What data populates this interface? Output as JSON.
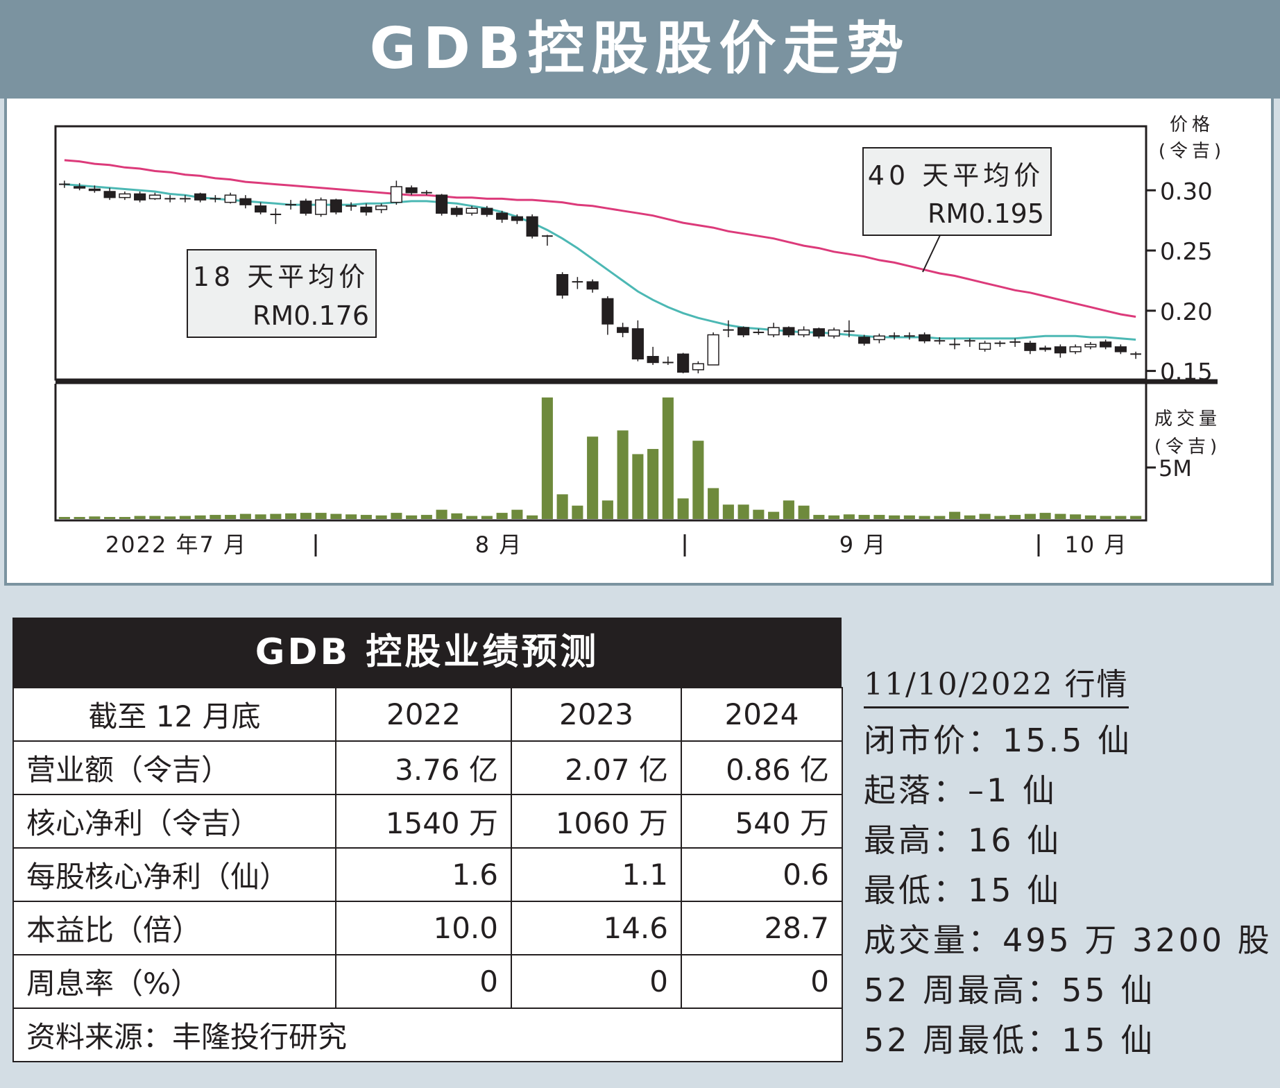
{
  "header": {
    "title": "GDB控股股价走势"
  },
  "chart_data": {
    "type": "candlestick",
    "price_axis": {
      "title": "价格",
      "unit": "(令吉)",
      "ticks": [
        "0.30",
        "0.25",
        "0.20",
        "0.15"
      ],
      "tick_values": [
        0.3,
        0.25,
        0.2,
        0.15
      ],
      "range": [
        0.144,
        0.352
      ]
    },
    "volume_axis": {
      "title": "成交量",
      "unit": "(令吉)",
      "ticks": [
        "5M"
      ],
      "tick_values": [
        5000000
      ],
      "range": [
        0,
        13000000
      ]
    },
    "x_labels": [
      "2022 年7 月",
      "8 月",
      "9 月",
      "10 月"
    ],
    "annotations": [
      {
        "label": "18 天平均价",
        "value": "RM0.176"
      },
      {
        "label": "40 天平均价",
        "value": "RM0.195"
      }
    ],
    "colors": {
      "ma18": "#4cb8b4",
      "ma40": "#dc3a7a",
      "volume": "#6e8a3c",
      "candle": "#231f20"
    },
    "candles": [
      [
        0.305,
        0.305,
        0.308,
        0.302
      ],
      [
        0.303,
        0.302,
        0.306,
        0.3
      ],
      [
        0.301,
        0.3,
        0.304,
        0.298
      ],
      [
        0.299,
        0.294,
        0.302,
        0.292
      ],
      [
        0.294,
        0.297,
        0.299,
        0.292
      ],
      [
        0.297,
        0.292,
        0.299,
        0.29
      ],
      [
        0.293,
        0.296,
        0.298,
        0.292
      ],
      [
        0.293,
        0.293,
        0.296,
        0.29
      ],
      [
        0.293,
        0.293,
        0.296,
        0.29
      ],
      [
        0.297,
        0.292,
        0.298,
        0.29
      ],
      [
        0.293,
        0.293,
        0.296,
        0.29
      ],
      [
        0.29,
        0.296,
        0.298,
        0.289
      ],
      [
        0.293,
        0.288,
        0.296,
        0.285
      ],
      [
        0.287,
        0.282,
        0.29,
        0.28
      ],
      [
        0.28,
        0.28,
        0.285,
        0.272
      ],
      [
        0.288,
        0.288,
        0.292,
        0.284
      ],
      [
        0.291,
        0.281,
        0.293,
        0.279
      ],
      [
        0.28,
        0.292,
        0.294,
        0.278
      ],
      [
        0.292,
        0.282,
        0.293,
        0.28
      ],
      [
        0.287,
        0.287,
        0.29,
        0.283
      ],
      [
        0.286,
        0.282,
        0.289,
        0.279
      ],
      [
        0.284,
        0.287,
        0.289,
        0.281
      ],
      [
        0.29,
        0.303,
        0.308,
        0.288
      ],
      [
        0.302,
        0.298,
        0.304,
        0.296
      ],
      [
        0.298,
        0.298,
        0.3,
        0.296
      ],
      [
        0.296,
        0.281,
        0.297,
        0.279
      ],
      [
        0.285,
        0.28,
        0.287,
        0.278
      ],
      [
        0.281,
        0.285,
        0.287,
        0.279
      ],
      [
        0.285,
        0.28,
        0.287,
        0.278
      ],
      [
        0.281,
        0.276,
        0.283,
        0.273
      ],
      [
        0.278,
        0.275,
        0.28,
        0.272
      ],
      [
        0.278,
        0.262,
        0.28,
        0.26
      ],
      [
        0.262,
        0.262,
        0.263,
        0.254
      ],
      [
        0.23,
        0.213,
        0.232,
        0.21
      ],
      [
        0.224,
        0.224,
        0.228,
        0.218
      ],
      [
        0.224,
        0.218,
        0.226,
        0.215
      ],
      [
        0.21,
        0.189,
        0.212,
        0.18
      ],
      [
        0.186,
        0.182,
        0.19,
        0.178
      ],
      [
        0.185,
        0.16,
        0.192,
        0.158
      ],
      [
        0.162,
        0.157,
        0.17,
        0.155
      ],
      [
        0.157,
        0.157,
        0.162,
        0.155
      ],
      [
        0.164,
        0.149,
        0.165,
        0.148
      ],
      [
        0.151,
        0.156,
        0.158,
        0.148
      ],
      [
        0.155,
        0.18,
        0.182,
        0.155
      ],
      [
        0.184,
        0.184,
        0.192,
        0.178
      ],
      [
        0.186,
        0.18,
        0.187,
        0.178
      ],
      [
        0.182,
        0.182,
        0.185,
        0.18
      ],
      [
        0.18,
        0.186,
        0.19,
        0.178
      ],
      [
        0.186,
        0.18,
        0.187,
        0.178
      ],
      [
        0.18,
        0.184,
        0.187,
        0.178
      ],
      [
        0.185,
        0.179,
        0.186,
        0.177
      ],
      [
        0.179,
        0.184,
        0.186,
        0.177
      ],
      [
        0.183,
        0.183,
        0.192,
        0.178
      ],
      [
        0.178,
        0.173,
        0.18,
        0.171
      ],
      [
        0.176,
        0.179,
        0.181,
        0.173
      ],
      [
        0.179,
        0.179,
        0.182,
        0.176
      ],
      [
        0.179,
        0.179,
        0.182,
        0.176
      ],
      [
        0.18,
        0.175,
        0.182,
        0.173
      ],
      [
        0.175,
        0.175,
        0.178,
        0.172
      ],
      [
        0.172,
        0.172,
        0.177,
        0.168
      ],
      [
        0.175,
        0.175,
        0.177,
        0.17
      ],
      [
        0.168,
        0.173,
        0.175,
        0.166
      ],
      [
        0.173,
        0.173,
        0.175,
        0.17
      ],
      [
        0.174,
        0.174,
        0.177,
        0.17
      ],
      [
        0.173,
        0.167,
        0.175,
        0.164
      ],
      [
        0.169,
        0.168,
        0.171,
        0.166
      ],
      [
        0.17,
        0.165,
        0.172,
        0.161
      ],
      [
        0.166,
        0.17,
        0.172,
        0.164
      ],
      [
        0.17,
        0.172,
        0.174,
        0.168
      ],
      [
        0.174,
        0.17,
        0.176,
        0.168
      ],
      [
        0.17,
        0.166,
        0.172,
        0.164
      ],
      [
        0.164,
        0.164,
        0.166,
        0.16
      ]
    ],
    "volume": [
      0.2,
      0.2,
      0.25,
      0.2,
      0.2,
      0.3,
      0.3,
      0.25,
      0.3,
      0.35,
      0.4,
      0.4,
      0.5,
      0.45,
      0.5,
      0.55,
      0.6,
      0.6,
      0.5,
      0.45,
      0.4,
      0.35,
      0.6,
      0.35,
      0.4,
      0.9,
      0.55,
      0.3,
      0.3,
      0.6,
      0.9,
      0.35,
      11.8,
      2.4,
      1.3,
      8.0,
      1.8,
      8.6,
      6.3,
      6.8,
      11.8,
      2.0,
      7.6,
      3.0,
      1.4,
      1.4,
      0.9,
      0.7,
      1.8,
      1.3,
      0.4,
      0.35,
      0.45,
      0.4,
      0.4,
      0.35,
      0.35,
      0.3,
      0.3,
      0.7,
      0.35,
      0.5,
      0.3,
      0.4,
      0.5,
      0.6,
      0.5,
      0.45,
      0.35,
      0.3,
      0.3,
      0.3
    ],
    "ma18": [
      0.305,
      0.304,
      0.303,
      0.302,
      0.301,
      0.3,
      0.299,
      0.297,
      0.296,
      0.294,
      0.293,
      0.292,
      0.291,
      0.29,
      0.289,
      0.288,
      0.288,
      0.288,
      0.288,
      0.288,
      0.289,
      0.289,
      0.29,
      0.291,
      0.291,
      0.29,
      0.289,
      0.287,
      0.285,
      0.282,
      0.278,
      0.273,
      0.267,
      0.26,
      0.252,
      0.243,
      0.234,
      0.225,
      0.216,
      0.209,
      0.203,
      0.198,
      0.194,
      0.191,
      0.188,
      0.186,
      0.185,
      0.184,
      0.183,
      0.182,
      0.182,
      0.181,
      0.18,
      0.179,
      0.178,
      0.178,
      0.178,
      0.178,
      0.177,
      0.177,
      0.177,
      0.177,
      0.177,
      0.177,
      0.178,
      0.179,
      0.179,
      0.179,
      0.178,
      0.178,
      0.177,
      0.176
    ],
    "ma40": [
      0.325,
      0.324,
      0.322,
      0.321,
      0.319,
      0.318,
      0.316,
      0.315,
      0.313,
      0.312,
      0.31,
      0.309,
      0.307,
      0.306,
      0.305,
      0.304,
      0.303,
      0.302,
      0.301,
      0.3,
      0.299,
      0.298,
      0.297,
      0.296,
      0.296,
      0.295,
      0.294,
      0.294,
      0.293,
      0.293,
      0.292,
      0.292,
      0.291,
      0.29,
      0.288,
      0.287,
      0.285,
      0.283,
      0.281,
      0.279,
      0.276,
      0.273,
      0.271,
      0.269,
      0.266,
      0.264,
      0.262,
      0.26,
      0.257,
      0.254,
      0.252,
      0.249,
      0.247,
      0.245,
      0.242,
      0.24,
      0.237,
      0.234,
      0.231,
      0.229,
      0.226,
      0.223,
      0.22,
      0.217,
      0.215,
      0.212,
      0.209,
      0.206,
      0.203,
      0.2,
      0.197,
      0.195
    ]
  },
  "forecast": {
    "title": "GDB 控股业绩预测",
    "columns": [
      "截至 12 月底",
      "2022",
      "2023",
      "2024"
    ],
    "rows": [
      [
        "营业额（令吉）",
        "3.76 亿",
        "2.07 亿",
        "0.86 亿"
      ],
      [
        "核心净利（令吉）",
        "1540 万",
        "1060 万",
        "540 万"
      ],
      [
        "每股核心净利（仙）",
        "1.6",
        "1.1",
        "0.6"
      ],
      [
        "本益比（倍）",
        "10.0",
        "14.6",
        "28.7"
      ],
      [
        "周息率（%）",
        "0",
        "0",
        "0"
      ]
    ],
    "source": "资料来源：丰隆投行研究"
  },
  "market": {
    "title": "11/10/2022 行情",
    "lines": [
      "闭市价：15.5 仙",
      "起落：–1 仙",
      "最高：16 仙",
      "最低：15 仙",
      "成交量：495 万 3200 股",
      "52 周最高：55 仙",
      "52 周最低：15 仙"
    ]
  }
}
